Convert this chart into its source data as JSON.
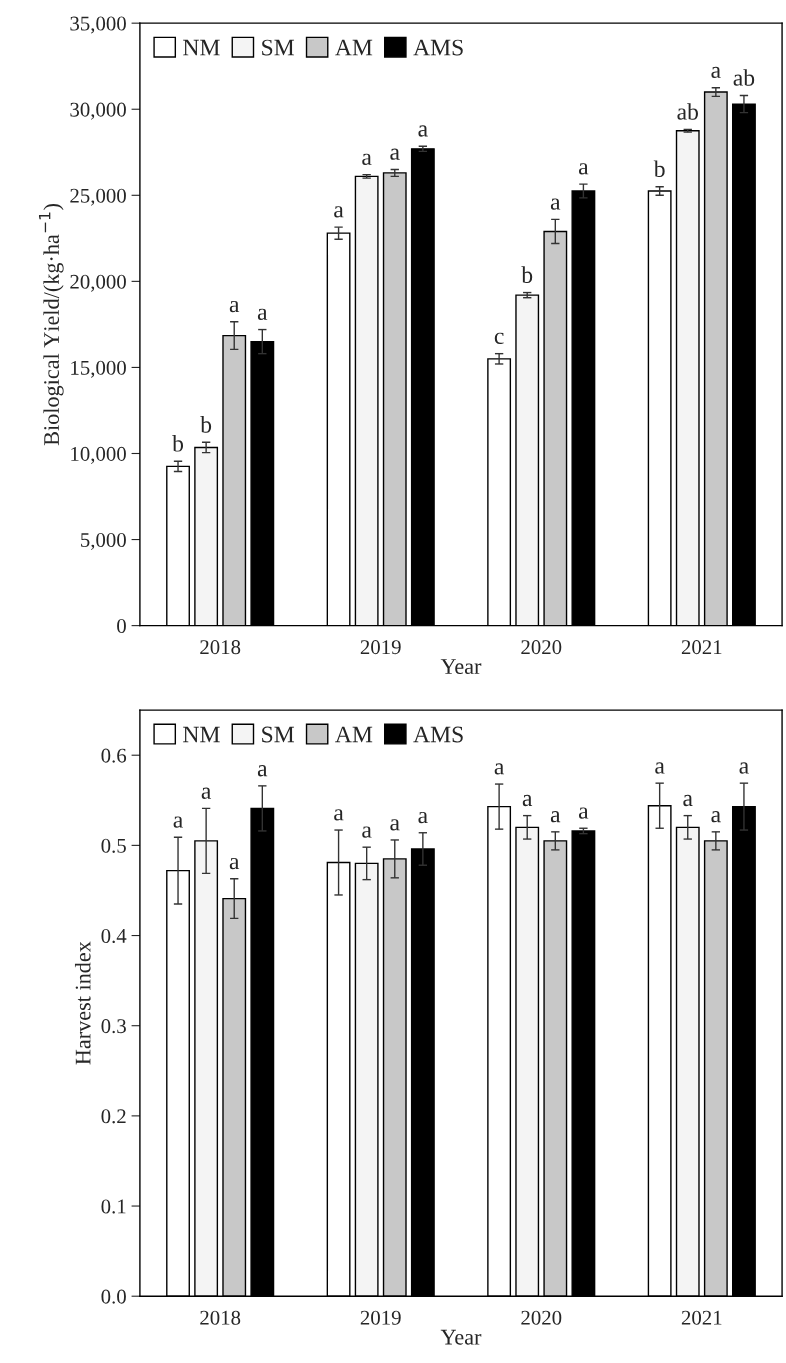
{
  "chart_data": [
    {
      "type": "bar",
      "ylabel": "Biological Yield/(kg·ha$^{−1}$)",
      "xlabel": "Year",
      "categories": [
        "2018",
        "2019",
        "2020",
        "2021"
      ],
      "ylim": [
        0,
        35000
      ],
      "yticks": [
        {
          "value": 0,
          "label": "0"
        },
        {
          "value": 5000,
          "label": "5,000"
        },
        {
          "value": 10000,
          "label": "10,000"
        },
        {
          "value": 15000,
          "label": "15,000"
        },
        {
          "value": 20000,
          "label": "20,000"
        },
        {
          "value": 25000,
          "label": "25,000"
        },
        {
          "value": 30000,
          "label": "30,000"
        },
        {
          "value": 35000,
          "label": "35,000"
        }
      ],
      "grid": false,
      "legend": "top left",
      "series": [
        {
          "name": "NM",
          "color": "#ffffff",
          "values": [
            9250,
            22800,
            15500,
            25250
          ],
          "errors": [
            300,
            350,
            300,
            250
          ],
          "value_labels": [
            "b",
            "a",
            "c",
            "b"
          ]
        },
        {
          "name": "SM",
          "color": "#f4f4f4",
          "values": [
            10350,
            26100,
            19200,
            28750
          ],
          "errors": [
            300,
            100,
            150,
            80
          ],
          "value_labels": [
            "b",
            "a",
            "b",
            "ab"
          ]
        },
        {
          "name": "AM",
          "color": "#c8c8c8",
          "values": [
            16850,
            26300,
            22900,
            31000
          ],
          "errors": [
            800,
            200,
            700,
            250
          ],
          "value_labels": [
            "a",
            "a",
            "a",
            "a"
          ]
        },
        {
          "name": "AMS",
          "color": "#000000",
          "values": [
            16500,
            27700,
            25250,
            30300
          ],
          "errors": [
            700,
            150,
            400,
            500
          ],
          "value_labels": [
            "a",
            "a",
            "a",
            "ab"
          ]
        }
      ]
    },
    {
      "type": "bar",
      "ylabel": "Harvest index",
      "xlabel": "Year",
      "categories": [
        "2018",
        "2019",
        "2020",
        "2021"
      ],
      "ylim": [
        0,
        0.65
      ],
      "yticks": [
        {
          "value": 0,
          "label": "0.0"
        },
        0.1,
        0.2,
        0.3,
        0.4,
        0.5,
        0.6
      ],
      "grid": false,
      "legend": "top left",
      "series": [
        {
          "name": "NM",
          "color": "#ffffff",
          "values": [
            0.472,
            0.481,
            0.543,
            0.544
          ],
          "errors": [
            0.037,
            0.036,
            0.025,
            0.025
          ],
          "value_labels": [
            "a",
            "a",
            "a",
            "a"
          ]
        },
        {
          "name": "SM",
          "color": "#f4f4f4",
          "values": [
            0.505,
            0.48,
            0.52,
            0.52
          ],
          "errors": [
            0.036,
            0.018,
            0.013,
            0.013
          ],
          "value_labels": [
            "a",
            "a",
            "a",
            "a"
          ]
        },
        {
          "name": "AM",
          "color": "#c8c8c8",
          "values": [
            0.441,
            0.485,
            0.505,
            0.505
          ],
          "errors": [
            0.022,
            0.021,
            0.01,
            0.01
          ],
          "value_labels": [
            "a",
            "a",
            "a",
            "a"
          ]
        },
        {
          "name": "AMS",
          "color": "#000000",
          "values": [
            0.541,
            0.496,
            0.516,
            0.543
          ],
          "errors": [
            0.025,
            0.018,
            0.003,
            0.026
          ],
          "value_labels": [
            "a",
            "a",
            "a",
            "a"
          ]
        }
      ]
    }
  ]
}
